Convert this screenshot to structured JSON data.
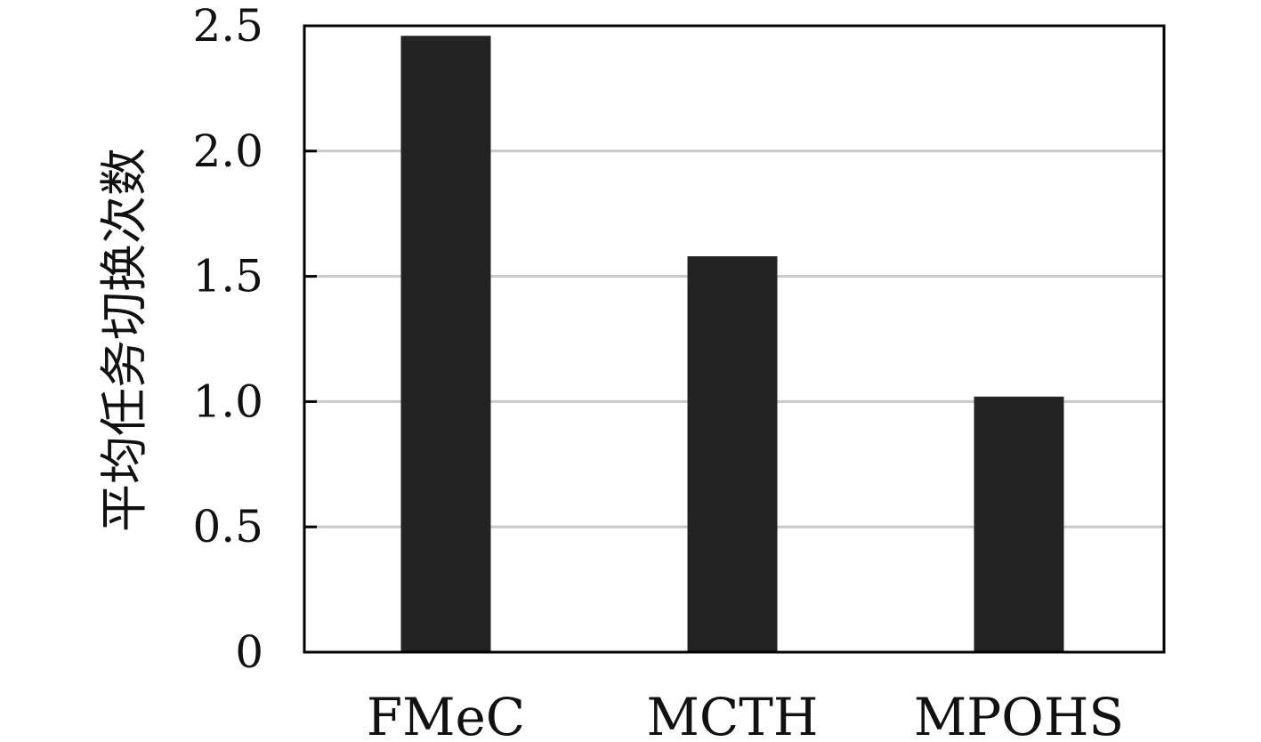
{
  "chart_data": {
    "type": "bar",
    "categories": [
      "FMeC",
      "MCTH",
      "MPOHS"
    ],
    "values": [
      2.46,
      1.58,
      1.02
    ],
    "ylabel": "平均任务切换次数",
    "xlabel": "",
    "ylim": [
      0,
      2.5
    ],
    "yticks": [
      0,
      0.5,
      1.0,
      1.5,
      2.0,
      2.5
    ],
    "ytick_labels": [
      "0",
      "0.5",
      "1.0",
      "1.5",
      "2.0",
      "2.5"
    ],
    "grid": "horizontal",
    "legend": "none",
    "colors": {
      "bar": "#232323",
      "grid": "#c8c8c8",
      "axis": "#000000"
    }
  }
}
